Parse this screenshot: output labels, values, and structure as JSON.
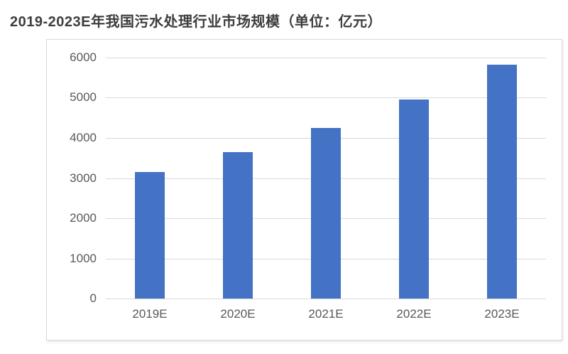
{
  "page": {
    "title": "2019-2023E年我国污水处理行业市场规模（单位：亿元）"
  },
  "chart_data": {
    "type": "bar",
    "title": "2019-2023E年我国污水处理行业市场规模（单位：亿元）",
    "unit_label": "亿元",
    "categories": [
      "2019E",
      "2020E",
      "2021E",
      "2022E",
      "2023E"
    ],
    "values": [
      3150,
      3650,
      4250,
      4950,
      5820
    ],
    "xlabel": "",
    "ylabel": "",
    "ylim": [
      0,
      6000
    ],
    "yticks": [
      0,
      1000,
      2000,
      3000,
      4000,
      5000,
      6000
    ],
    "grid": true,
    "legend": false,
    "colors": {
      "bar": "#4472C4",
      "gridline": "#D9D9D9",
      "axis_label": "#595959",
      "title": "#3D3D3D",
      "frame_border": "#D9D9D9",
      "background": "#FFFFFF"
    }
  }
}
